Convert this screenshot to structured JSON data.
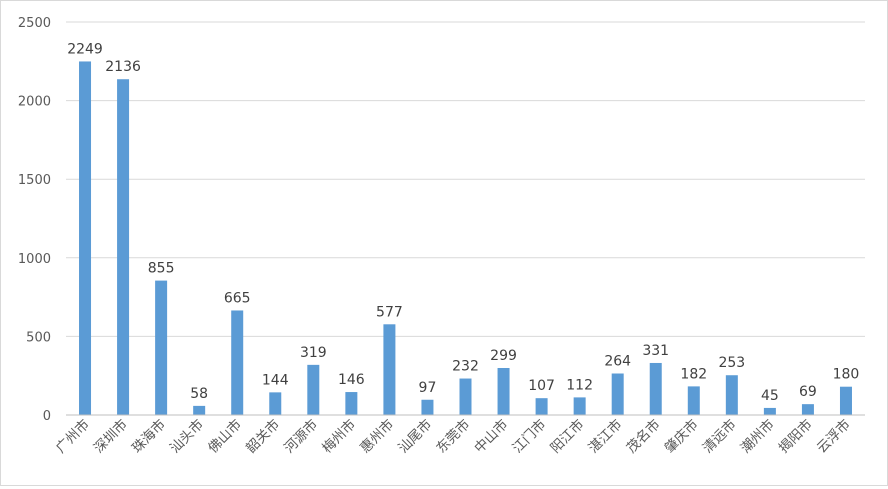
{
  "chart_data": {
    "type": "bar",
    "categories": [
      "广州市",
      "深圳市",
      "珠海市",
      "汕头市",
      "佛山市",
      "韶关市",
      "河源市",
      "梅州市",
      "惠州市",
      "汕尾市",
      "东莞市",
      "中山市",
      "江门市",
      "阳江市",
      "湛江市",
      "茂名市",
      "肇庆市",
      "清远市",
      "潮州市",
      "揭阳市",
      "云浮市"
    ],
    "values": [
      2249,
      2136,
      855,
      58,
      665,
      144,
      319,
      146,
      577,
      97,
      232,
      299,
      107,
      112,
      264,
      331,
      182,
      253,
      45,
      69,
      180
    ],
    "ylim": [
      0,
      2500
    ],
    "yticks": [
      0,
      500,
      1000,
      1500,
      2000,
      2500
    ],
    "grid": true,
    "legend": "none",
    "bar_color": "#5b9bd5",
    "title": "",
    "xlabel": "",
    "ylabel": ""
  }
}
